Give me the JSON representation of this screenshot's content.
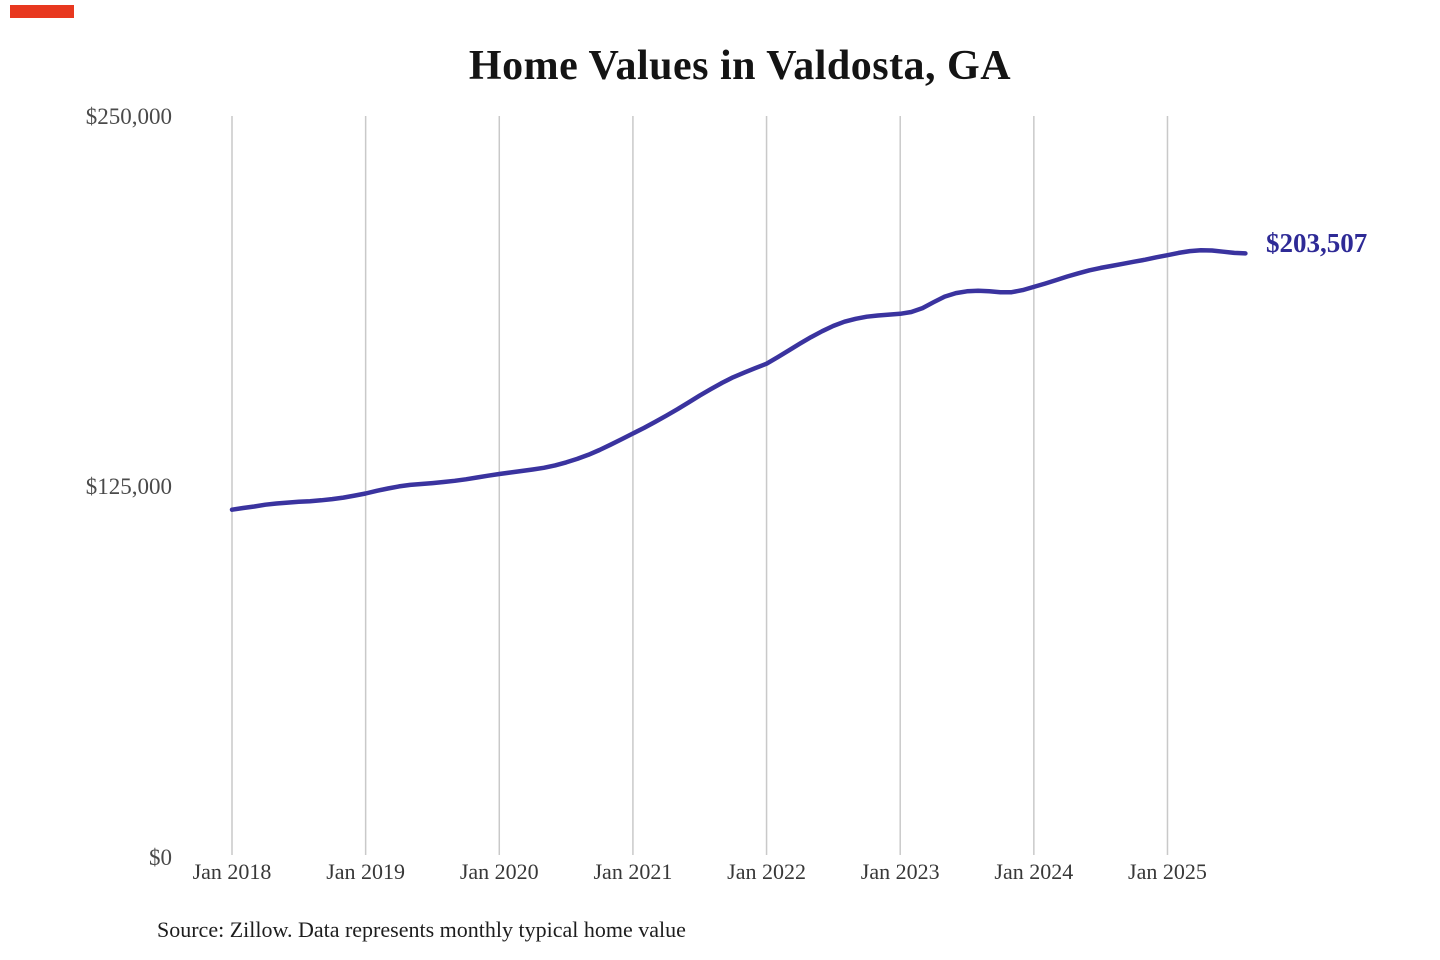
{
  "page": {
    "background": "#ffffff",
    "red_marker_color": "#e8381f"
  },
  "chart_data": {
    "type": "line",
    "title": "Home Values in Valdosta, GA",
    "xlabel": "",
    "ylabel": "",
    "ylim": [
      0,
      250000
    ],
    "grid": "vertical",
    "grid_color": "#c9c9c9",
    "x_tick_labels": [
      "Jan 2018",
      "Jan 2019",
      "Jan 2020",
      "Jan 2021",
      "Jan 2022",
      "Jan 2023",
      "Jan 2024",
      "Jan 2025"
    ],
    "y_tick_labels": [
      "$0",
      "$125,000",
      "$250,000"
    ],
    "end_label": "$203,507",
    "end_value": 203507,
    "source_note": "Source: Zillow. Data represents monthly typical home value",
    "series": [
      {
        "name": "Monthly typical home value",
        "color": "#3a339f",
        "x_start": "Jan 2018",
        "x_end": "Aug 2025",
        "frequency": "monthly",
        "values": [
          116800,
          117400,
          117900,
          118500,
          118900,
          119200,
          119500,
          119700,
          120000,
          120400,
          120900,
          121600,
          122300,
          123200,
          124000,
          124700,
          125200,
          125500,
          125800,
          126200,
          126600,
          127100,
          127700,
          128300,
          128900,
          129400,
          129900,
          130400,
          131000,
          131800,
          132800,
          134000,
          135400,
          137000,
          138800,
          140700,
          142600,
          144500,
          146500,
          148600,
          150800,
          153100,
          155400,
          157600,
          159700,
          161600,
          163200,
          164700,
          166200,
          168400,
          170700,
          173000,
          175200,
          177200,
          179000,
          180400,
          181400,
          182100,
          182500,
          182800,
          183100,
          183700,
          185000,
          187000,
          188900,
          190100,
          190700,
          190900,
          190700,
          190400,
          190400,
          191100,
          192200,
          193300,
          194500,
          195700,
          196800,
          197800,
          198600,
          199300,
          200000,
          200700,
          201400,
          202200,
          202900,
          203700,
          204300,
          204600,
          204500,
          204100,
          203700,
          203507
        ]
      }
    ]
  }
}
